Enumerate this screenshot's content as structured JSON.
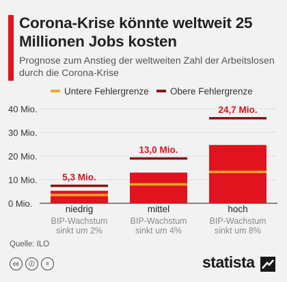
{
  "header": {
    "title": "Corona-Krise könnte weltweit 25 Millionen Jobs kosten",
    "subtitle": "Prognose zum Anstieg der weltweiten Zahl der Arbeitslosen durch die Corona-Krise"
  },
  "legend": {
    "lower": "Untere Fehlergrenze",
    "upper": "Obere Fehlergrenze"
  },
  "colors": {
    "bar": "#e0141e",
    "lower_bound": "#f7a529",
    "upper_bound": "#8b1118",
    "label": "#d7111b"
  },
  "chart_data": {
    "type": "bar",
    "title": "Corona-Krise könnte weltweit 25 Millionen Jobs kosten",
    "subtitle": "Prognose zum Anstieg der weltweiten Zahl der Arbeitslosen durch die Corona-Krise",
    "categories": [
      "niedrig",
      "mittel",
      "hoch"
    ],
    "category_sublabels": [
      "BIP-Wachstum sinkt um 2%",
      "BIP-Wachstum sinkt um 4%",
      "BIP-Wachstum sinkt um 8%"
    ],
    "values": [
      5.3,
      13.0,
      24.7
    ],
    "value_labels": [
      "5,3 Mio.",
      "13,0 Mio.",
      "24,7 Mio."
    ],
    "lower_bound": [
      3.5,
      8.0,
      13.3
    ],
    "upper_bound": [
      7.4,
      19.0,
      36.0
    ],
    "yticks": [
      "0 Mio.",
      "10 Mio.",
      "20 Mio.",
      "30 Mio.",
      "40 Mio."
    ],
    "ylim": [
      0,
      40
    ],
    "grid": true,
    "legend_position": "top"
  },
  "footer": {
    "source": "Quelle: ILO",
    "brand": "statista",
    "license_icons": [
      "cc",
      "by",
      "nd"
    ]
  }
}
